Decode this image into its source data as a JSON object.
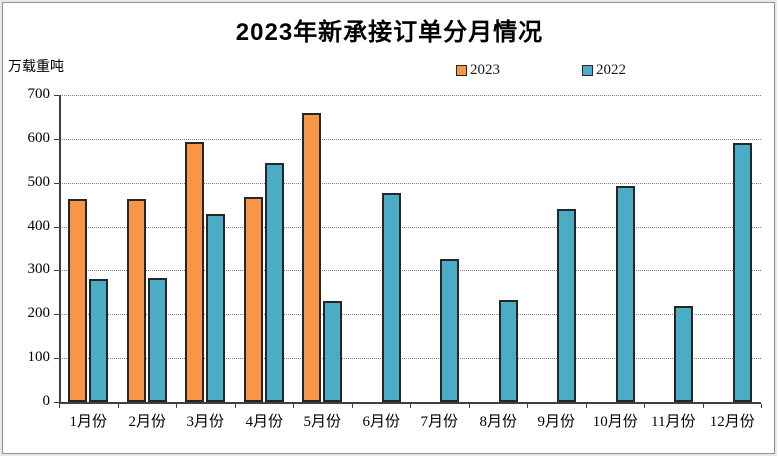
{
  "chart_data": {
    "type": "bar",
    "title": "2023年新承接订单分月情况",
    "ylabel_unit": "万载重吨",
    "categories": [
      "1月份",
      "2月份",
      "3月份",
      "4月份",
      "5月份",
      "6月份",
      "7月份",
      "8月份",
      "9月份",
      "10月份",
      "11月份",
      "12月份"
    ],
    "series": [
      {
        "name": "2023",
        "color": "#F79646",
        "values": [
          462,
          464,
          593,
          467,
          658,
          null,
          null,
          null,
          null,
          null,
          null,
          null
        ]
      },
      {
        "name": "2022",
        "color": "#4BACC6",
        "values": [
          281,
          283,
          428,
          545,
          230,
          476,
          326,
          233,
          440,
          492,
          220,
          590
        ]
      }
    ],
    "ylim": [
      0,
      700
    ],
    "ytick_step": 100,
    "yticks": [
      "0",
      "100",
      "200",
      "300",
      "400",
      "500",
      "600",
      "700"
    ],
    "grid": "horizontal-dotted",
    "legend_position": "top-center",
    "bar_border_color": "#262626",
    "axis_color": "#404040",
    "gridline_color": "#808080"
  }
}
